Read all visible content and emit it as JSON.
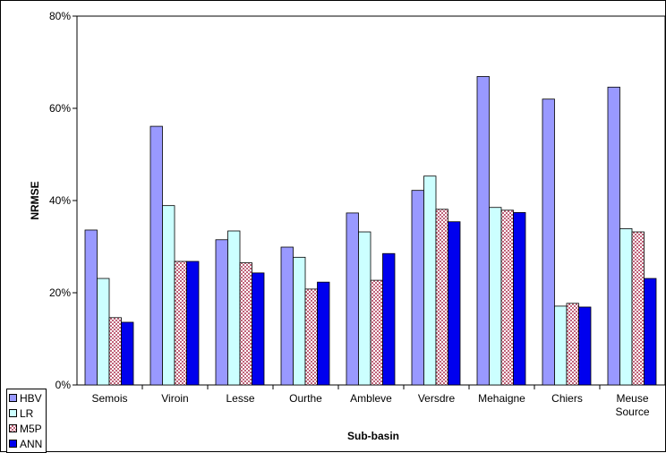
{
  "chart_data": {
    "type": "bar",
    "title": "",
    "xlabel": "Sub-basin",
    "ylabel": "NRMSE",
    "ylim": [
      0,
      80
    ],
    "yticks": [
      "0%",
      "20%",
      "40%",
      "60%",
      "80%"
    ],
    "categories": [
      "Semois",
      "Viroin",
      "Lesse",
      "Ourthe",
      "Ambleve",
      "Versdre",
      "Mehaigne",
      "Chiers",
      "Meuse Source"
    ],
    "category_lines": [
      [
        "Semois"
      ],
      [
        "Viroin"
      ],
      [
        "Lesse"
      ],
      [
        "Ourthe"
      ],
      [
        "Ambleve"
      ],
      [
        "Versdre"
      ],
      [
        "Mehaigne"
      ],
      [
        "Chiers"
      ],
      [
        "Meuse",
        "Source"
      ]
    ],
    "series": [
      {
        "name": "HBV",
        "color": "#9999ff",
        "values": [
          33.6,
          56.1,
          31.5,
          29.9,
          37.3,
          42.2,
          66.9,
          62.0,
          64.6
        ]
      },
      {
        "name": "LR",
        "color": "#ccffff",
        "values": [
          23.1,
          38.9,
          33.4,
          27.7,
          33.2,
          45.3,
          38.5,
          17.1,
          33.9
        ]
      },
      {
        "name": "M5P",
        "color": "#f2c6cc",
        "pattern": "checker",
        "values": [
          14.6,
          26.8,
          26.5,
          20.8,
          22.7,
          38.1,
          37.9,
          17.7,
          33.2
        ]
      },
      {
        "name": "ANN",
        "color": "#0000ee",
        "values": [
          13.6,
          26.8,
          24.3,
          22.3,
          28.5,
          35.4,
          37.4,
          16.9,
          23.1
        ]
      }
    ],
    "legend_position": "bottom-left"
  }
}
